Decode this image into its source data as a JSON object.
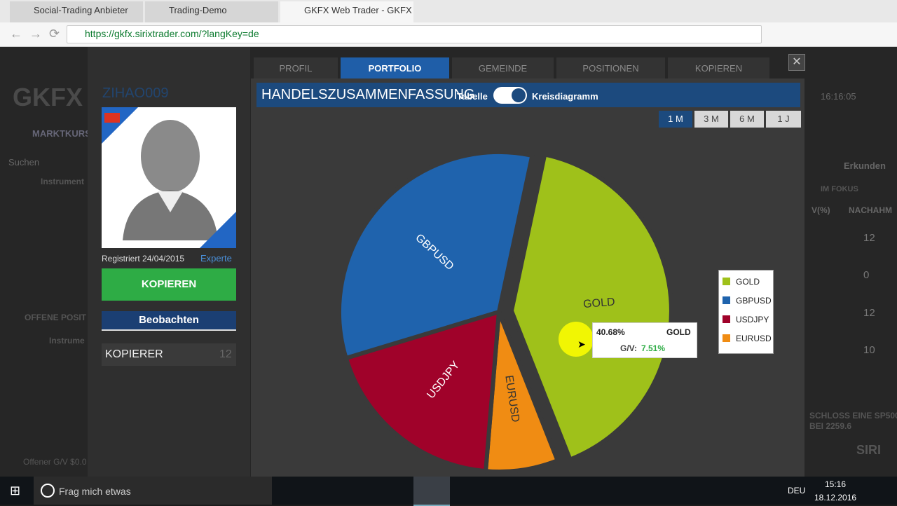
{
  "browser": {
    "tabs": [
      "Social-Trading Anbieter",
      "Trading-Demo",
      "GKFX Web Trader - GKFX"
    ],
    "url": "https://gkfx.sirixtrader.com/?langKey=de"
  },
  "background": {
    "logo": "GKFX",
    "time": "16:16:05",
    "menu": "MARKTKURS",
    "search": "Suchen",
    "instrument": "Instrument",
    "open_positions": "OFFENE POSIT",
    "instrument2": "Instrume",
    "open_pnl": "Offener G/V $0.0",
    "explore": "Erkunden",
    "focus": "IM FOKUS",
    "col_pct": "V(%)",
    "col_follow": "NACHAHM",
    "follow_values": [
      "12",
      "0",
      "12",
      "10"
    ],
    "news1": "SCHLOSS EINE SP500",
    "news2": "BEI 2259.6",
    "brand": "SIRI"
  },
  "profile": {
    "username": "ZIHAO009",
    "registered": "Registriert 24/04/2015",
    "level": "Experte",
    "copy_button": "KOPIEREN",
    "watch_button": "Beobachten",
    "copiers_label": "KOPIERER",
    "copiers_count": "12"
  },
  "tabs": [
    "PROFIL",
    "PORTFOLIO",
    "GEMEINDE",
    "POSITIONEN",
    "KOPIEREN"
  ],
  "summary": {
    "title": "HANDELSZUSAMMENFASSUNG",
    "table_toggle": "Tabelle",
    "pie_toggle": "Kreisdiagramm",
    "periods": [
      "1 M",
      "3 M",
      "6 M",
      "1 J"
    ]
  },
  "chart_data": {
    "type": "pie",
    "categories": [
      "GOLD",
      "EURUSD",
      "USDJPY",
      "GBPUSD"
    ],
    "values": [
      40.68,
      7.3,
      19,
      33
    ],
    "colors": [
      "#9fc11a",
      "#f08c13",
      "#a0022a",
      "#1f63ad"
    ],
    "legend_order": [
      0,
      3,
      2,
      1
    ]
  },
  "tooltip": {
    "percent": "40.68%",
    "name": "GOLD",
    "gv_label": "G/V:",
    "gv_value": "7.51%"
  },
  "taskbar": {
    "search": "Frag mich etwas",
    "language": "DEU",
    "time": "15:16",
    "date": "18.12.2016"
  }
}
